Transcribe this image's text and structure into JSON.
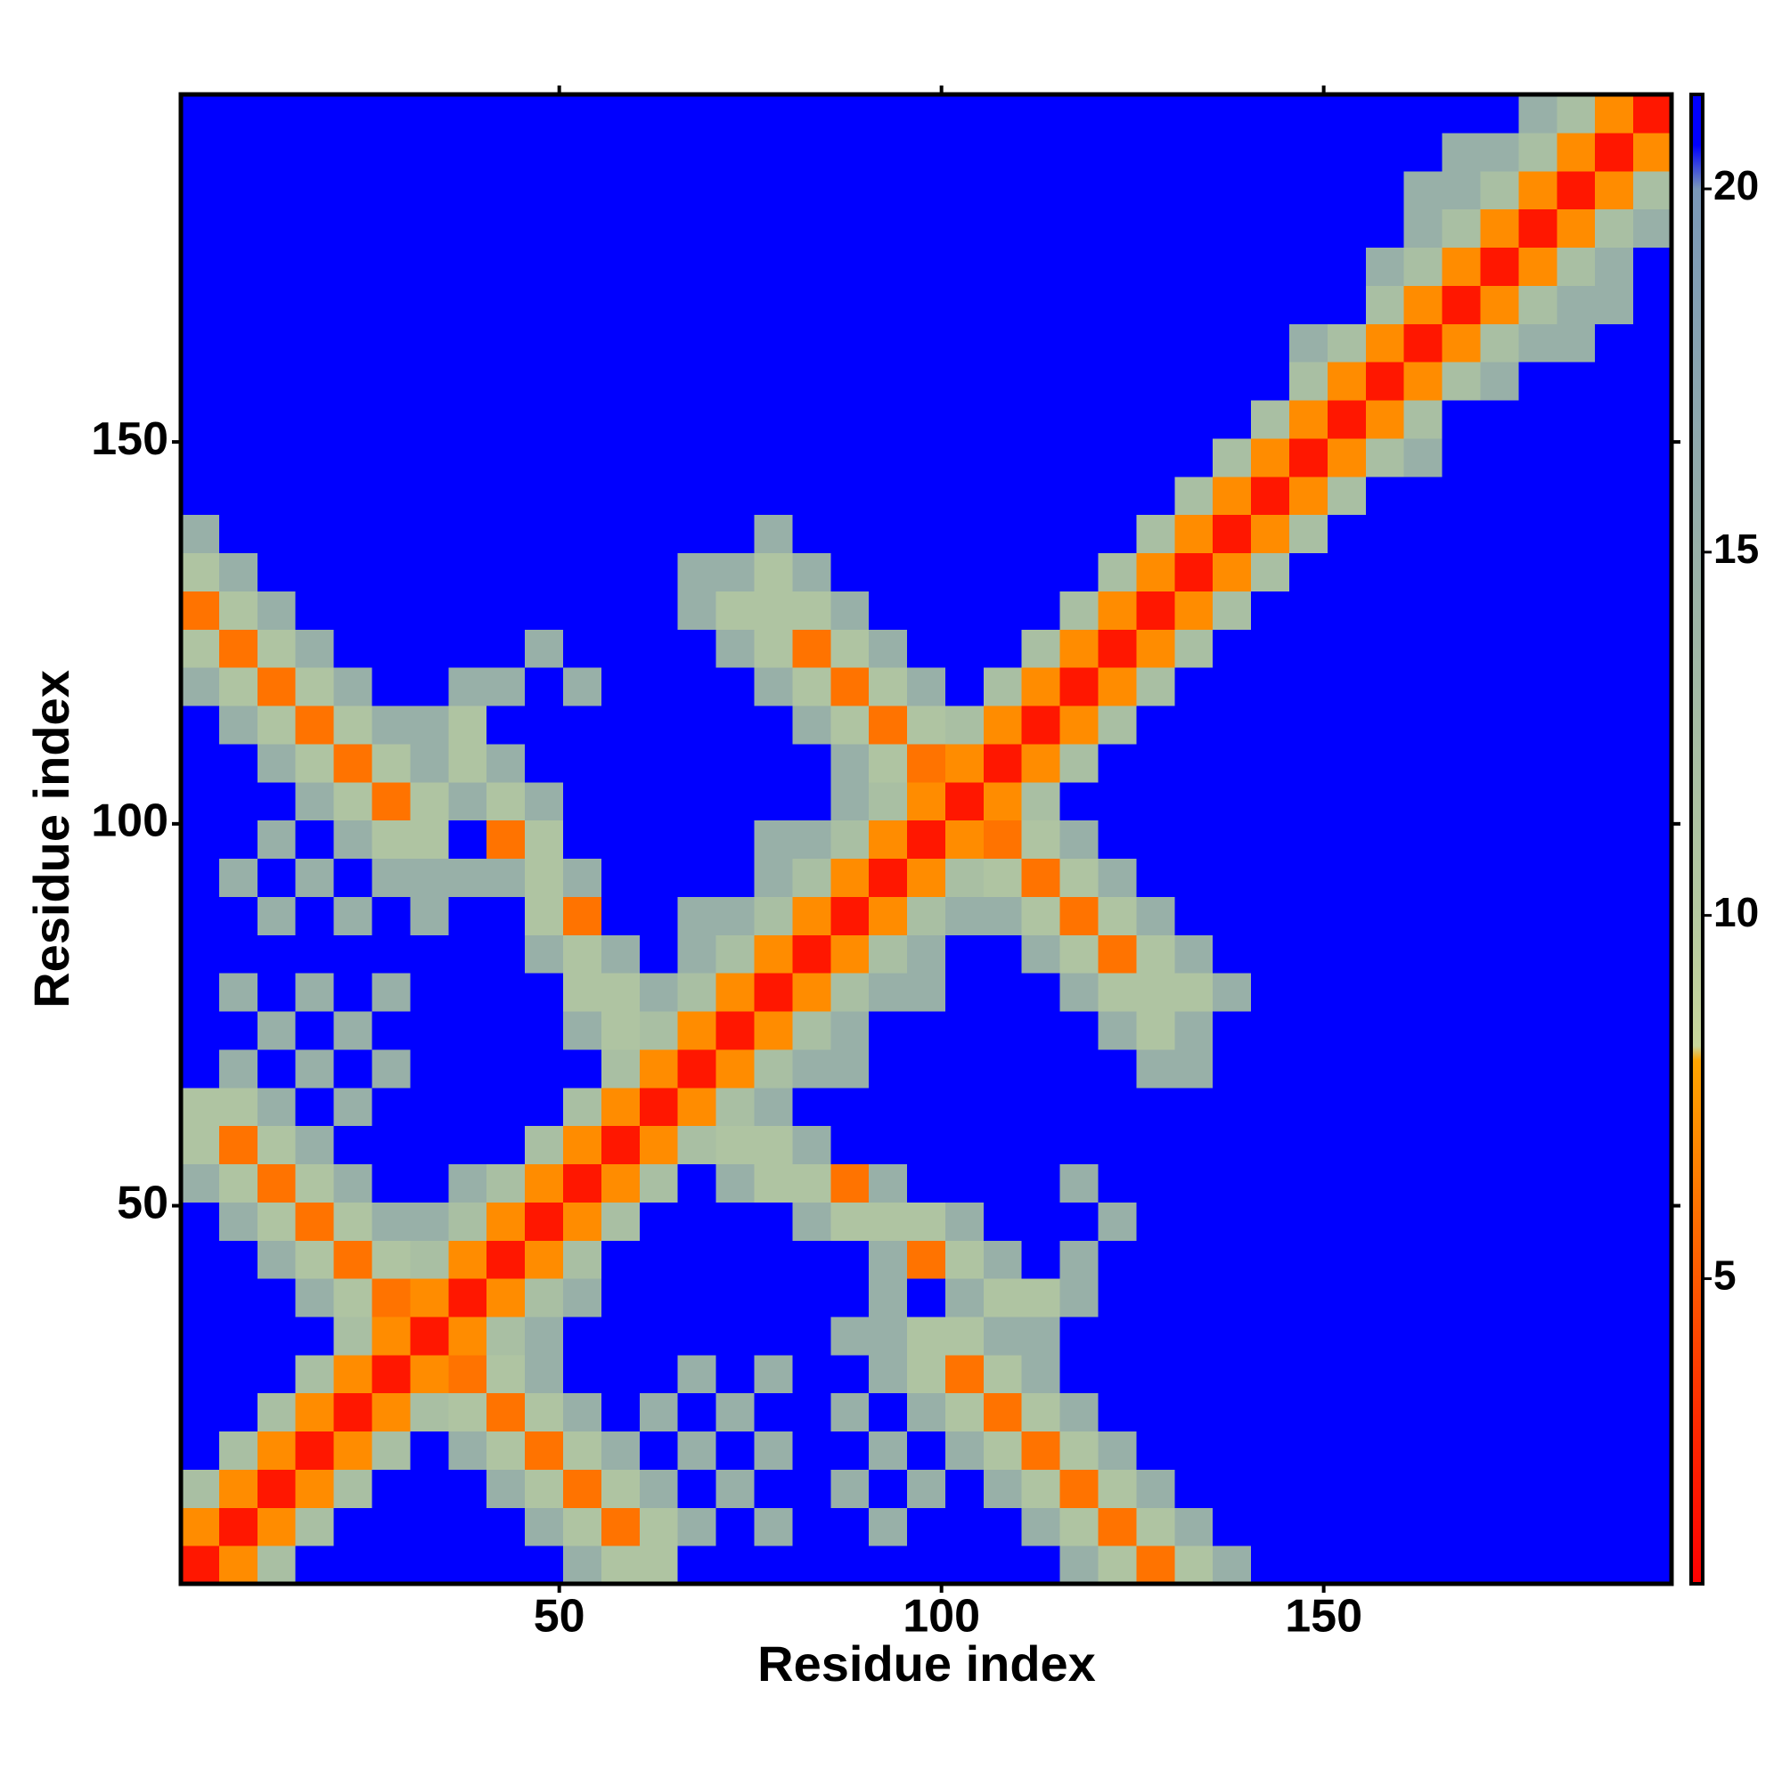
{
  "chart_data": {
    "type": "heatmap",
    "xlabel": "Residue index",
    "ylabel": "Residue index",
    "xlim": [
      0.5,
      195.5
    ],
    "ylim": [
      0.5,
      195.5
    ],
    "xticks": [
      50,
      100,
      150
    ],
    "yticks": [
      50,
      100,
      150
    ],
    "zlim": [
      0.8,
      21.3
    ],
    "zticks": [
      5,
      10,
      15,
      20
    ],
    "symmetric": true,
    "colorscale": [
      [
        0.8,
        "#ff0000"
      ],
      [
        3,
        "#ff2a00"
      ],
      [
        5,
        "#ff5a00"
      ],
      [
        7,
        "#ff8c00"
      ],
      [
        8,
        "#ffa500"
      ],
      [
        8.2,
        "#c9d79c"
      ],
      [
        10,
        "#b5c9a0"
      ],
      [
        15,
        "#98b0a8"
      ],
      [
        20,
        "#7a98b8"
      ],
      [
        20.6,
        "#0000ff"
      ],
      [
        21.3,
        "#0000ff"
      ]
    ],
    "x": [
      3,
      8,
      13,
      18,
      23,
      28,
      33,
      38,
      43,
      48,
      53,
      58,
      63,
      68,
      73,
      78,
      83,
      88,
      93,
      98,
      103,
      108,
      113,
      118,
      123,
      128,
      133,
      138,
      143,
      148,
      153,
      158,
      163,
      168,
      173,
      178,
      183,
      188,
      193
    ],
    "y": [
      3,
      8,
      13,
      18,
      23,
      28,
      33,
      38,
      43,
      48,
      53,
      58,
      63,
      68,
      73,
      78,
      83,
      88,
      93,
      98,
      103,
      108,
      113,
      118,
      123,
      128,
      133,
      138,
      143,
      148,
      153,
      158,
      163,
      168,
      173,
      178,
      183,
      188,
      193
    ],
    "z": [
      [
        2
      ],
      [
        7,
        2
      ],
      [
        12,
        7,
        2
      ],
      [
        21,
        12,
        7,
        2
      ],
      [
        21,
        21,
        12,
        7,
        2
      ],
      [
        21,
        21,
        21,
        12,
        7,
        2
      ],
      [
        21,
        21,
        21,
        21,
        12,
        7,
        2
      ],
      [
        21,
        21,
        21,
        15,
        11,
        6,
        7,
        2
      ],
      [
        21,
        21,
        15,
        11,
        6,
        11,
        12,
        7,
        2
      ],
      [
        21,
        15,
        11,
        6,
        11,
        15,
        15,
        12,
        7,
        2
      ],
      [
        15,
        11,
        6,
        11,
        15,
        21,
        21,
        15,
        12,
        7,
        2
      ],
      [
        11,
        6,
        11,
        15,
        21,
        21,
        21,
        21,
        21,
        12,
        7,
        2
      ],
      [
        11,
        11,
        15,
        21,
        15,
        21,
        21,
        21,
        21,
        21,
        12,
        7,
        2
      ],
      [
        21,
        15,
        21,
        15,
        21,
        15,
        21,
        21,
        21,
        21,
        21,
        12,
        7,
        2
      ],
      [
        21,
        21,
        15,
        21,
        15,
        21,
        21,
        21,
        21,
        21,
        15,
        11,
        12,
        7,
        2
      ],
      [
        21,
        15,
        21,
        15,
        21,
        15,
        21,
        21,
        21,
        21,
        11,
        11,
        15,
        12,
        7,
        2
      ],
      [
        21,
        21,
        21,
        21,
        21,
        21,
        21,
        21,
        21,
        15,
        11,
        15,
        21,
        15,
        12,
        7,
        2
      ],
      [
        21,
        21,
        15,
        21,
        15,
        21,
        15,
        21,
        21,
        11,
        6,
        21,
        21,
        15,
        15,
        12,
        7,
        2
      ],
      [
        21,
        15,
        21,
        15,
        21,
        15,
        15,
        15,
        15,
        11,
        15,
        21,
        21,
        21,
        21,
        15,
        12,
        7,
        2
      ],
      [
        21,
        21,
        15,
        21,
        15,
        11,
        11,
        21,
        6,
        11,
        21,
        21,
        21,
        21,
        21,
        15,
        15,
        12,
        7,
        2
      ],
      [
        21,
        21,
        21,
        15,
        11,
        6,
        11,
        15,
        11,
        15,
        21,
        21,
        21,
        21,
        21,
        21,
        21,
        15,
        12,
        7,
        2
      ],
      [
        21,
        21,
        15,
        11,
        6,
        11,
        15,
        11,
        15,
        21,
        21,
        21,
        21,
        21,
        21,
        21,
        21,
        15,
        11,
        6,
        7,
        2
      ],
      [
        21,
        15,
        11,
        6,
        11,
        15,
        15,
        11,
        21,
        21,
        21,
        21,
        21,
        21,
        21,
        21,
        15,
        11,
        6,
        11,
        12,
        7,
        2
      ],
      [
        15,
        11,
        6,
        11,
        15,
        21,
        21,
        15,
        15,
        21,
        15,
        21,
        21,
        21,
        21,
        15,
        11,
        6,
        11,
        15,
        21,
        12,
        7,
        2
      ],
      [
        11,
        6,
        11,
        15,
        21,
        21,
        21,
        21,
        21,
        15,
        21,
        21,
        21,
        21,
        15,
        11,
        6,
        11,
        15,
        21,
        21,
        21,
        12,
        7,
        2
      ],
      [
        6,
        11,
        15,
        21,
        21,
        21,
        21,
        21,
        21,
        21,
        21,
        21,
        21,
        15,
        11,
        11,
        11,
        15,
        21,
        21,
        21,
        21,
        21,
        12,
        7,
        2
      ],
      [
        11,
        15,
        21,
        21,
        21,
        21,
        21,
        21,
        21,
        21,
        21,
        21,
        21,
        15,
        15,
        11,
        15,
        21,
        21,
        21,
        21,
        21,
        21,
        21,
        12,
        7,
        2
      ],
      [
        15,
        21,
        21,
        21,
        21,
        21,
        21,
        21,
        21,
        21,
        21,
        21,
        21,
        21,
        21,
        15,
        21,
        21,
        21,
        21,
        21,
        21,
        21,
        21,
        21,
        12,
        7,
        2
      ],
      [
        21,
        21,
        21,
        21,
        21,
        21,
        21,
        21,
        21,
        21,
        21,
        21,
        21,
        21,
        21,
        21,
        21,
        21,
        21,
        21,
        21,
        21,
        21,
        21,
        21,
        21,
        12,
        7,
        2
      ],
      [
        21,
        21,
        21,
        21,
        21,
        21,
        21,
        21,
        21,
        21,
        21,
        21,
        21,
        21,
        21,
        21,
        21,
        21,
        21,
        21,
        21,
        21,
        21,
        21,
        21,
        21,
        21,
        12,
        7,
        2
      ],
      [
        21,
        21,
        21,
        21,
        21,
        21,
        21,
        21,
        21,
        21,
        21,
        21,
        21,
        21,
        21,
        21,
        21,
        21,
        21,
        21,
        21,
        21,
        21,
        21,
        21,
        21,
        21,
        21,
        12,
        7,
        2
      ],
      [
        21,
        21,
        21,
        21,
        21,
        21,
        21,
        21,
        21,
        21,
        21,
        21,
        21,
        21,
        21,
        21,
        21,
        21,
        21,
        21,
        21,
        21,
        21,
        21,
        21,
        21,
        21,
        21,
        21,
        12,
        7,
        2
      ],
      [
        21,
        21,
        21,
        21,
        21,
        21,
        21,
        21,
        21,
        21,
        21,
        21,
        21,
        21,
        21,
        21,
        21,
        21,
        21,
        21,
        21,
        21,
        21,
        21,
        21,
        21,
        21,
        21,
        21,
        15,
        12,
        7,
        2
      ],
      [
        21,
        21,
        21,
        21,
        21,
        21,
        21,
        21,
        21,
        21,
        21,
        21,
        21,
        21,
        21,
        21,
        21,
        21,
        21,
        21,
        21,
        21,
        21,
        21,
        21,
        21,
        21,
        21,
        21,
        21,
        21,
        12,
        7,
        2
      ],
      [
        21,
        21,
        21,
        21,
        21,
        21,
        21,
        21,
        21,
        21,
        21,
        21,
        21,
        21,
        21,
        21,
        21,
        21,
        21,
        21,
        21,
        21,
        21,
        21,
        21,
        21,
        21,
        21,
        21,
        21,
        21,
        15,
        12,
        7,
        2
      ],
      [
        21,
        21,
        21,
        21,
        21,
        21,
        21,
        21,
        21,
        21,
        21,
        21,
        21,
        21,
        21,
        21,
        21,
        21,
        21,
        21,
        21,
        21,
        21,
        21,
        21,
        21,
        21,
        21,
        21,
        21,
        21,
        21,
        15,
        12,
        7,
        2
      ],
      [
        21,
        21,
        21,
        21,
        21,
        21,
        21,
        21,
        21,
        21,
        21,
        21,
        21,
        21,
        21,
        21,
        21,
        21,
        21,
        21,
        21,
        21,
        21,
        21,
        21,
        21,
        21,
        21,
        21,
        21,
        21,
        21,
        15,
        15,
        12,
        7,
        2
      ],
      [
        21,
        21,
        21,
        21,
        21,
        21,
        21,
        21,
        21,
        21,
        21,
        21,
        21,
        21,
        21,
        21,
        21,
        21,
        21,
        21,
        21,
        21,
        21,
        21,
        21,
        21,
        21,
        21,
        21,
        21,
        21,
        21,
        21,
        15,
        15,
        12,
        7,
        2
      ],
      [
        21,
        21,
        21,
        21,
        21,
        21,
        21,
        21,
        21,
        21,
        21,
        21,
        21,
        21,
        21,
        21,
        21,
        21,
        21,
        21,
        21,
        21,
        21,
        21,
        21,
        21,
        21,
        21,
        21,
        21,
        21,
        21,
        21,
        21,
        21,
        15,
        12,
        7,
        2
      ]
    ]
  }
}
